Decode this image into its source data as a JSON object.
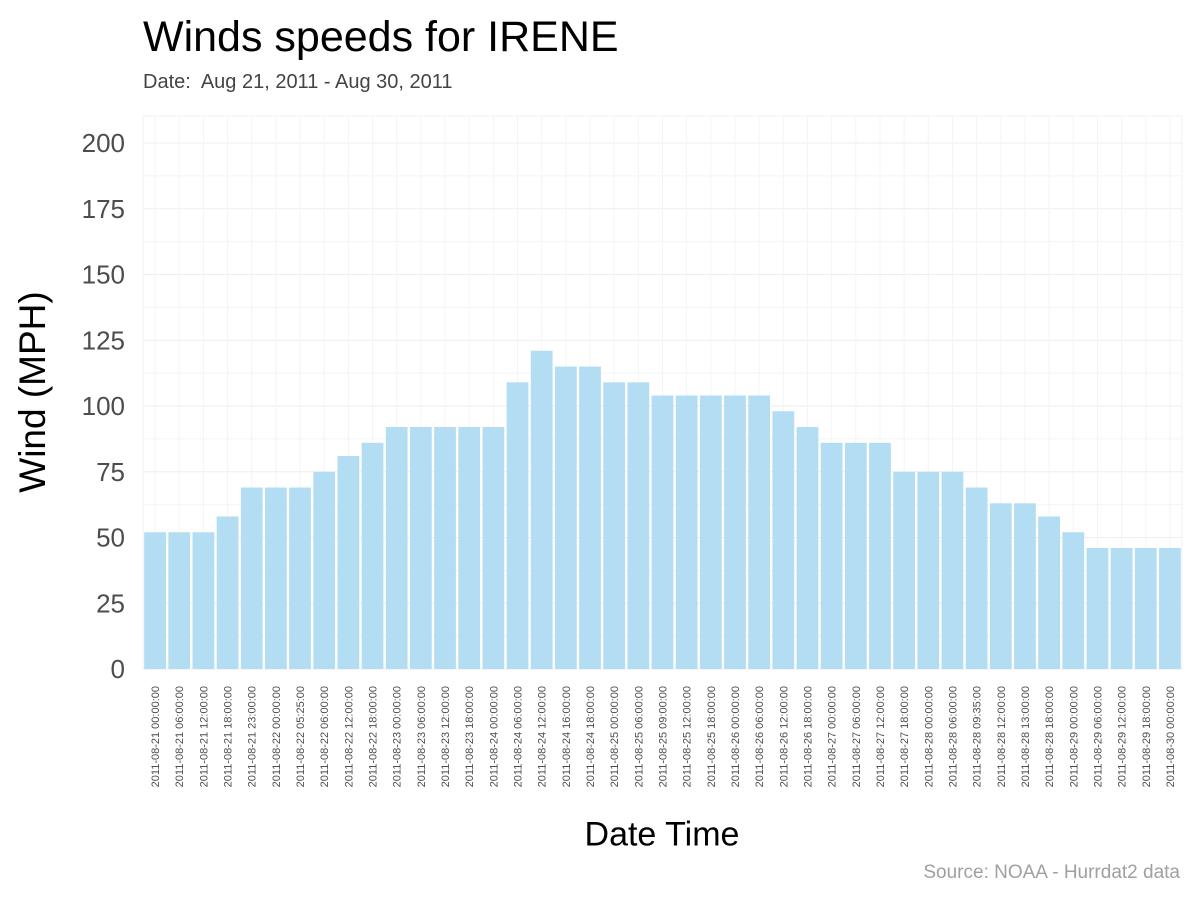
{
  "chart_data": {
    "type": "bar",
    "title": "Winds speeds for IRENE",
    "subtitle": "Date:  Aug 21, 2011 - Aug 30, 2011",
    "xlabel": "Date Time",
    "ylabel": "Wind (MPH)",
    "caption": "Source: NOAA - Hurrdat2 data",
    "ylim": [
      0,
      200
    ],
    "yticks": [
      0,
      25,
      50,
      75,
      100,
      125,
      150,
      175,
      200
    ],
    "grid": true,
    "legend": "none",
    "bar_color": "#b3ddf2",
    "categories": [
      "2011-08-21 00:00:00",
      "2011-08-21 06:00:00",
      "2011-08-21 12:00:00",
      "2011-08-21 18:00:00",
      "2011-08-21 23:00:00",
      "2011-08-22 00:00:00",
      "2011-08-22 05:25:00",
      "2011-08-22 06:00:00",
      "2011-08-22 12:00:00",
      "2011-08-22 18:00:00",
      "2011-08-23 00:00:00",
      "2011-08-23 06:00:00",
      "2011-08-23 12:00:00",
      "2011-08-23 18:00:00",
      "2011-08-24 00:00:00",
      "2011-08-24 06:00:00",
      "2011-08-24 12:00:00",
      "2011-08-24 16:00:00",
      "2011-08-24 18:00:00",
      "2011-08-25 00:00:00",
      "2011-08-25 06:00:00",
      "2011-08-25 09:00:00",
      "2011-08-25 12:00:00",
      "2011-08-25 18:00:00",
      "2011-08-26 00:00:00",
      "2011-08-26 06:00:00",
      "2011-08-26 12:00:00",
      "2011-08-26 18:00:00",
      "2011-08-27 00:00:00",
      "2011-08-27 06:00:00",
      "2011-08-27 12:00:00",
      "2011-08-27 18:00:00",
      "2011-08-28 00:00:00",
      "2011-08-28 06:00:00",
      "2011-08-28 09:35:00",
      "2011-08-28 12:00:00",
      "2011-08-28 13:00:00",
      "2011-08-28 18:00:00",
      "2011-08-29 00:00:00",
      "2011-08-29 06:00:00",
      "2011-08-29 12:00:00",
      "2011-08-29 18:00:00",
      "2011-08-30 00:00:00"
    ],
    "values": [
      52,
      52,
      52,
      58,
      69,
      69,
      69,
      75,
      81,
      86,
      92,
      92,
      92,
      92,
      92,
      109,
      121,
      115,
      115,
      109,
      109,
      104,
      104,
      104,
      104,
      104,
      98,
      92,
      86,
      86,
      86,
      75,
      75,
      75,
      69,
      63,
      63,
      58,
      52,
      46,
      46,
      46,
      46
    ]
  }
}
